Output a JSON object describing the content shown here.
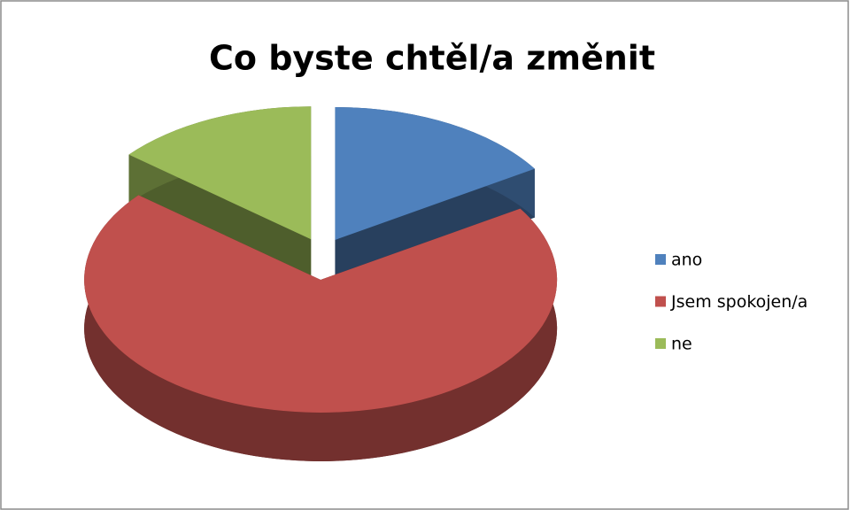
{
  "chart_data": {
    "type": "pie3d",
    "title": "Co byste chtěl/a změnit",
    "categories": [
      "ano",
      "Jsem spokojen/a",
      "ne"
    ],
    "values": [
      16,
      70,
      14
    ],
    "colors": [
      "#4f81bd",
      "#c0504d",
      "#9bbb59"
    ],
    "legend": "right"
  }
}
